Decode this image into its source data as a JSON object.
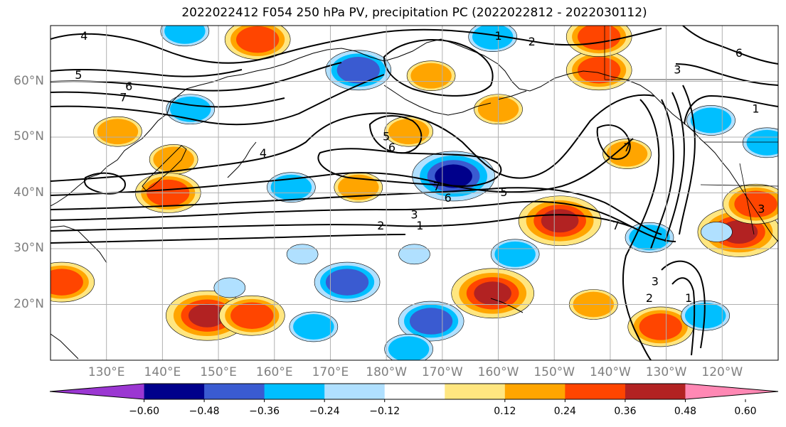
{
  "title": "2022022412 F054 250 hPa PV, precipitation PC (2022022812 - 2022030112)",
  "axes": {
    "lat_labels": [
      "60°N",
      "50°N",
      "40°N",
      "30°N",
      "20°N"
    ],
    "lat_values": [
      60,
      50,
      40,
      30,
      20
    ],
    "lon_labels": [
      "130°E",
      "140°E",
      "150°E",
      "160°E",
      "170°E",
      "180°W",
      "170°W",
      "160°W",
      "150°W",
      "140°W",
      "130°W",
      "120°W"
    ],
    "lon_values": [
      130,
      140,
      150,
      160,
      170,
      180,
      190,
      200,
      210,
      220,
      230,
      240
    ],
    "lon_range": [
      120,
      250
    ],
    "lat_range": [
      10,
      70
    ],
    "grid": true
  },
  "colorbar": {
    "tick_labels": [
      "−0.60",
      "−0.48",
      "−0.36",
      "−0.24",
      "−0.12",
      "0.12",
      "0.24",
      "0.36",
      "0.48",
      "0.60"
    ],
    "colors": [
      "#9b37d2",
      "#00008b",
      "#3a5bd1",
      "#00bfff",
      "#b0e0ff",
      "#ffffff",
      "#ffe680",
      "#ffa500",
      "#ff4500",
      "#b22222",
      "#ff88b4"
    ],
    "extend": "both"
  },
  "pv_contour_labels": [
    {
      "text": "1",
      "lon": 200,
      "lat": 68
    },
    {
      "text": "2",
      "lon": 206,
      "lat": 67
    },
    {
      "text": "3",
      "lon": 232,
      "lat": 62
    },
    {
      "text": "4",
      "lon": 126,
      "lat": 68
    },
    {
      "text": "5",
      "lon": 125,
      "lat": 61
    },
    {
      "text": "6",
      "lon": 134,
      "lat": 59
    },
    {
      "text": "7",
      "lon": 133,
      "lat": 57
    },
    {
      "text": "5",
      "lon": 180,
      "lat": 50
    },
    {
      "text": "6",
      "lon": 181,
      "lat": 48
    },
    {
      "text": "7",
      "lon": 189,
      "lat": 41
    },
    {
      "text": "6",
      "lon": 191,
      "lat": 39
    },
    {
      "text": "5",
      "lon": 201,
      "lat": 40
    },
    {
      "text": "3",
      "lon": 185,
      "lat": 36
    },
    {
      "text": "2",
      "lon": 179,
      "lat": 34
    },
    {
      "text": "1",
      "lon": 186,
      "lat": 34
    },
    {
      "text": "7",
      "lon": 223,
      "lat": 48
    },
    {
      "text": "7",
      "lon": 221,
      "lat": 34
    },
    {
      "text": "3",
      "lon": 228,
      "lat": 24
    },
    {
      "text": "2",
      "lon": 227,
      "lat": 21
    },
    {
      "text": "1",
      "lon": 234,
      "lat": 21
    },
    {
      "text": "1",
      "lon": 246,
      "lat": 55
    },
    {
      "text": "6",
      "lon": 243,
      "lat": 65
    },
    {
      "text": "3",
      "lon": 247,
      "lat": 37
    },
    {
      "text": "4",
      "lon": 158,
      "lat": 47
    }
  ],
  "precip_anomalies": [
    {
      "sign": "positive",
      "level": 3,
      "lon": 157,
      "lat": 67.5
    },
    {
      "sign": "positive",
      "level": 3,
      "lon": 218,
      "lat": 62
    },
    {
      "sign": "positive",
      "level": 3,
      "lon": 218,
      "lat": 68
    },
    {
      "sign": "positive",
      "level": 2,
      "lon": 200,
      "lat": 55
    },
    {
      "sign": "positive",
      "level": 2,
      "lon": 188,
      "lat": 61
    },
    {
      "sign": "positive",
      "level": 2,
      "lon": 184,
      "lat": 51
    },
    {
      "sign": "positive",
      "level": 2,
      "lon": 132,
      "lat": 51
    },
    {
      "sign": "positive",
      "level": 2,
      "lon": 142,
      "lat": 46
    },
    {
      "sign": "positive",
      "level": 3,
      "lon": 141,
      "lat": 40
    },
    {
      "sign": "positive",
      "level": 2,
      "lon": 175,
      "lat": 41
    },
    {
      "sign": "positive",
      "level": 4,
      "lon": 211,
      "lat": 35
    },
    {
      "sign": "positive",
      "level": 2,
      "lon": 223,
      "lat": 47
    },
    {
      "sign": "positive",
      "level": 4,
      "lon": 243,
      "lat": 33
    },
    {
      "sign": "positive",
      "level": 3,
      "lon": 246,
      "lat": 38
    },
    {
      "sign": "positive",
      "level": 3,
      "lon": 122,
      "lat": 24
    },
    {
      "sign": "positive",
      "level": 4,
      "lon": 148,
      "lat": 18
    },
    {
      "sign": "positive",
      "level": 3,
      "lon": 156,
      "lat": 18
    },
    {
      "sign": "positive",
      "level": 4,
      "lon": 199,
      "lat": 22
    },
    {
      "sign": "positive",
      "level": 3,
      "lon": 229,
      "lat": 16
    },
    {
      "sign": "positive",
      "level": 2,
      "lon": 217,
      "lat": 20
    },
    {
      "sign": "negative",
      "level": 2,
      "lon": 144,
      "lat": 69
    },
    {
      "sign": "negative",
      "level": 3,
      "lon": 175,
      "lat": 62
    },
    {
      "sign": "negative",
      "level": 2,
      "lon": 145,
      "lat": 55
    },
    {
      "sign": "negative",
      "level": 2,
      "lon": 199,
      "lat": 68
    },
    {
      "sign": "negative",
      "level": 2,
      "lon": 163,
      "lat": 41
    },
    {
      "sign": "negative",
      "level": 4,
      "lon": 192,
      "lat": 43
    },
    {
      "sign": "negative",
      "level": 2,
      "lon": 238,
      "lat": 53
    },
    {
      "sign": "negative",
      "level": 2,
      "lon": 248,
      "lat": 49
    },
    {
      "sign": "negative",
      "level": 2,
      "lon": 227,
      "lat": 32
    },
    {
      "sign": "negative",
      "level": 1,
      "lon": 239,
      "lat": 33
    },
    {
      "sign": "negative",
      "level": 1,
      "lon": 165,
      "lat": 29
    },
    {
      "sign": "negative",
      "level": 1,
      "lon": 185,
      "lat": 29
    },
    {
      "sign": "negative",
      "level": 2,
      "lon": 203,
      "lat": 29
    },
    {
      "sign": "negative",
      "level": 3,
      "lon": 173,
      "lat": 24
    },
    {
      "sign": "negative",
      "level": 3,
      "lon": 188,
      "lat": 17
    },
    {
      "sign": "negative",
      "level": 2,
      "lon": 184,
      "lat": 12
    },
    {
      "sign": "negative",
      "level": 2,
      "lon": 167,
      "lat": 16
    },
    {
      "sign": "negative",
      "level": 2,
      "lon": 237,
      "lat": 18
    },
    {
      "sign": "negative",
      "level": 1,
      "lon": 152,
      "lat": 23
    }
  ]
}
